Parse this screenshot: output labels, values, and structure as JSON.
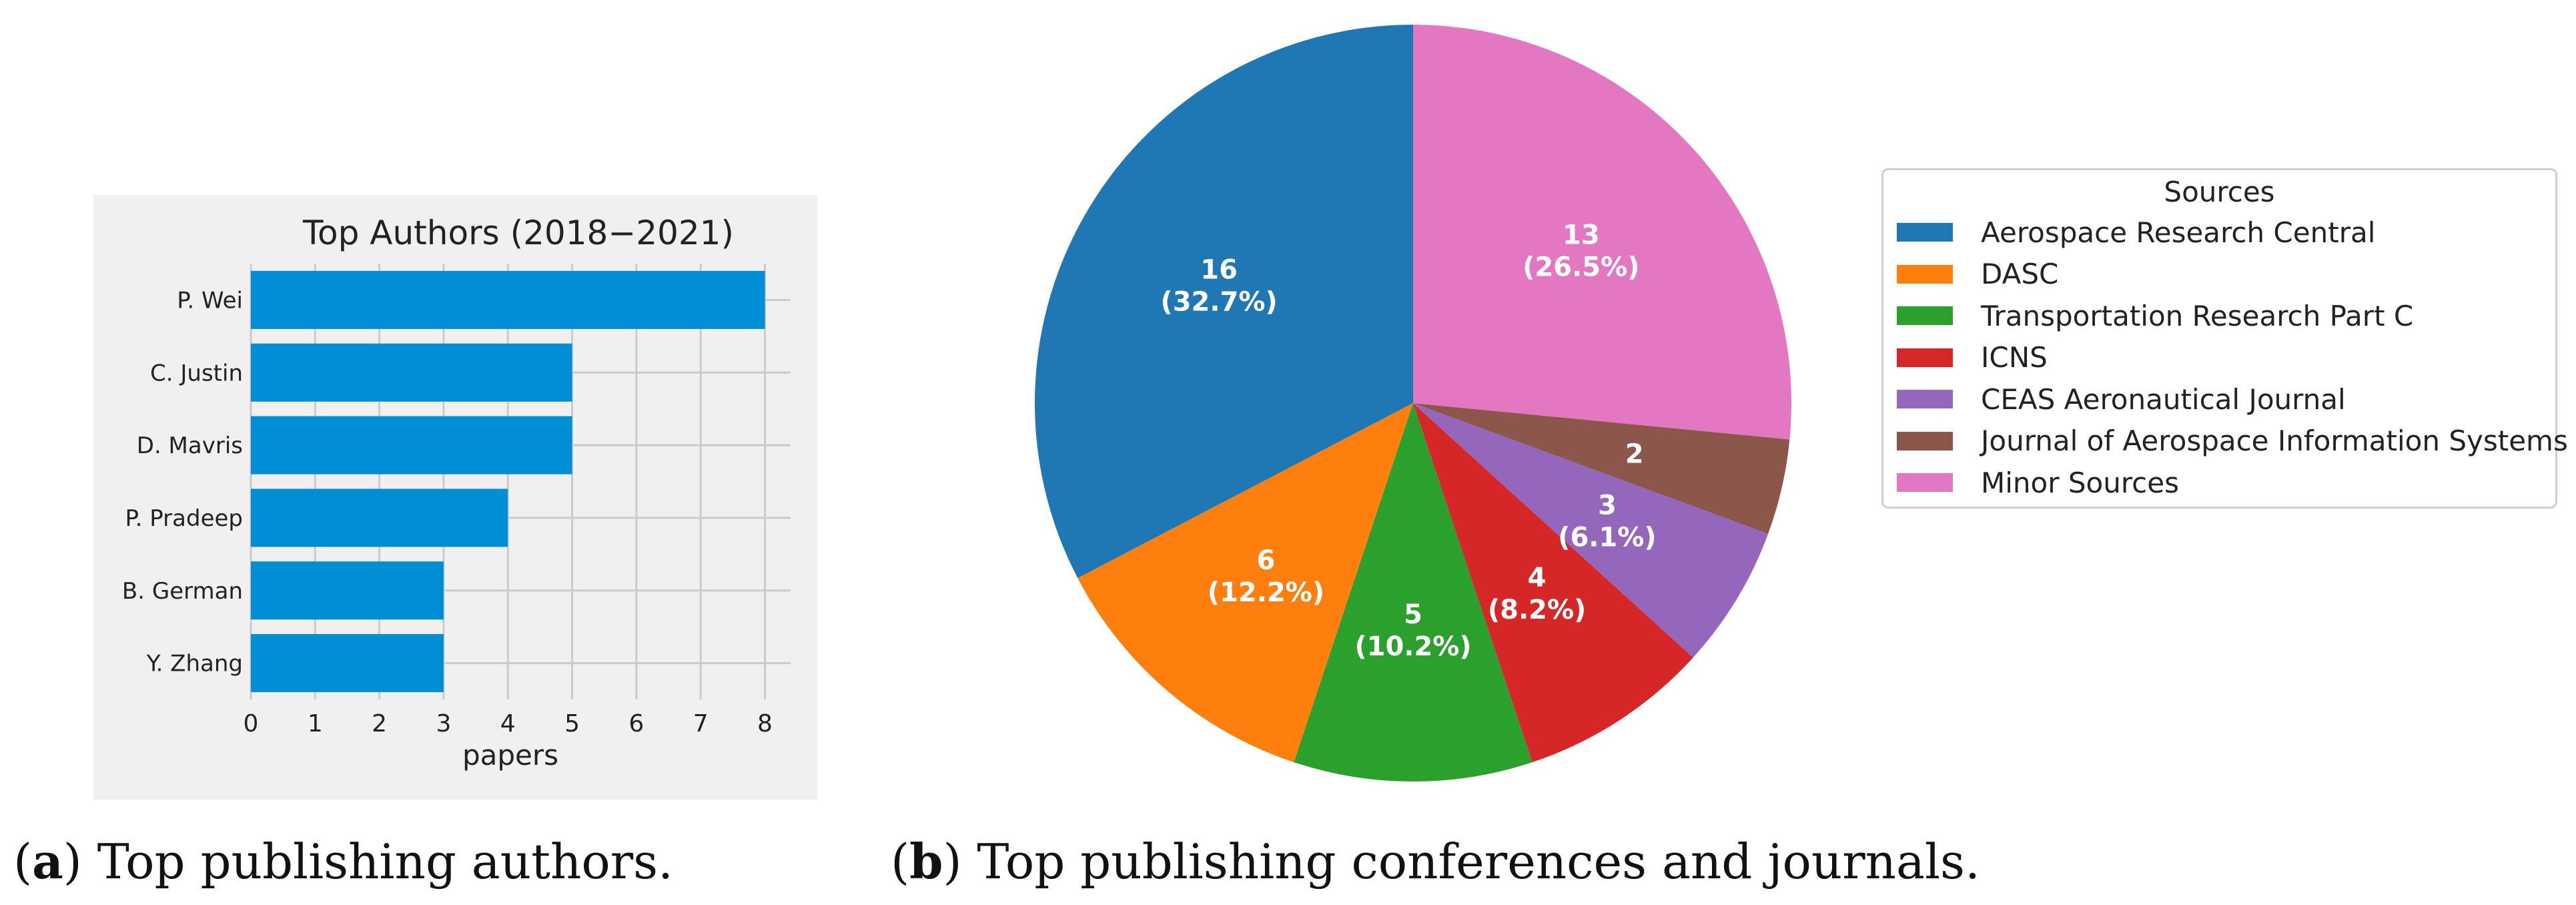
{
  "chart_data": [
    {
      "type": "bar",
      "orientation": "horizontal",
      "title": "Top Authors (2018−2021)",
      "xlabel": "papers",
      "categories": [
        "P. Wei",
        "C. Justin",
        "D. Mavris",
        "P. Pradeep",
        "B. German",
        "Y. Zhang"
      ],
      "values": [
        8,
        5,
        5,
        4,
        3,
        3
      ],
      "xlim": [
        0,
        8.4
      ],
      "xticks": [
        "0",
        "1",
        "2",
        "3",
        "4",
        "5",
        "6",
        "7",
        "8"
      ],
      "grid": true,
      "bar_color": "#008fd5",
      "background_color": "#f0f0f0",
      "caption_letter": "a",
      "caption_text": " Top publishing authors."
    },
    {
      "type": "pie",
      "legend_title": "Sources",
      "legend_position": "right",
      "slices": [
        {
          "label": "Aerospace Research Central",
          "value": 16,
          "pct": "32.7%",
          "color": "#1f77b4"
        },
        {
          "label": "DASC",
          "value": 6,
          "pct": "12.2%",
          "color": "#ff7f0e"
        },
        {
          "label": "Transportation Research Part C",
          "value": 5,
          "pct": "10.2%",
          "color": "#2ca02c"
        },
        {
          "label": "ICNS",
          "value": 4,
          "pct": "8.2%",
          "color": "#d62728"
        },
        {
          "label": "CEAS Aeronautical Journal",
          "value": 3,
          "pct": "6.1%",
          "color": "#9467bd"
        },
        {
          "label": "Journal of Aerospace Information Systems",
          "value": 2,
          "pct": "",
          "color": "#8c564b"
        },
        {
          "label": "Minor Sources",
          "value": 13,
          "pct": "26.5%",
          "color": "#e377c2"
        }
      ],
      "caption_letter": "b",
      "caption_text": " Top publishing conferences and journals."
    }
  ]
}
